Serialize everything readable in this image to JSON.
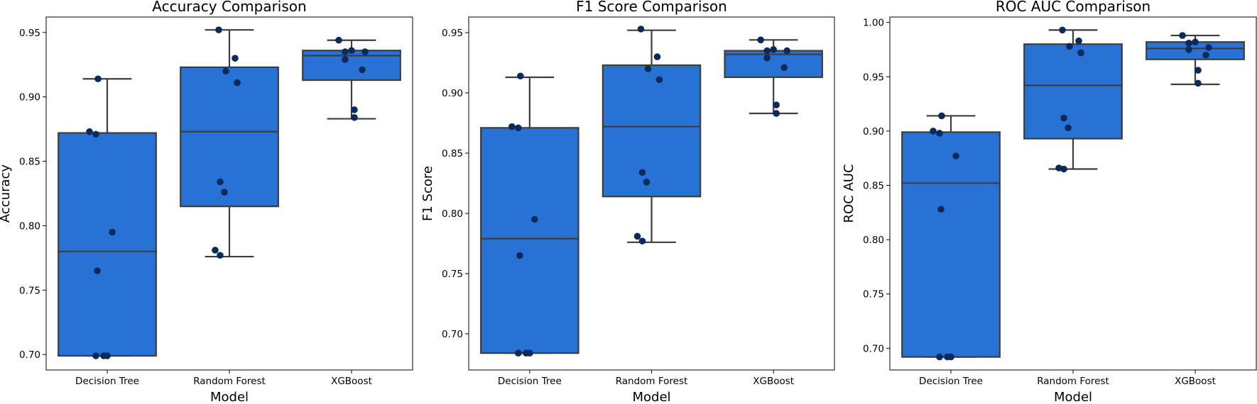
{
  "colors": {
    "box_fill": "#2872d6",
    "box_line": "#3d3d3d",
    "point": "#0a2a5c",
    "axis": "#000000",
    "background": "#ffffff"
  },
  "chart_data": [
    {
      "type": "box",
      "title": "Accuracy Comparison",
      "xlabel": "Model",
      "ylabel": "Accuracy",
      "ylim": [
        0.688,
        0.962
      ],
      "yticks": [
        "0.70",
        "0.75",
        "0.80",
        "0.85",
        "0.90",
        "0.95"
      ],
      "categories": [
        "Decision Tree",
        "Random Forest",
        "XGBoost"
      ],
      "boxes": [
        {
          "whislo": 0.699,
          "q1": 0.699,
          "med": 0.78,
          "q3": 0.872,
          "whishi": 0.914
        },
        {
          "whislo": 0.776,
          "q1": 0.815,
          "med": 0.873,
          "q3": 0.923,
          "whishi": 0.952
        },
        {
          "whislo": 0.883,
          "q1": 0.913,
          "med": 0.932,
          "q3": 0.936,
          "whishi": 0.944
        }
      ],
      "points": [
        [
          0.914,
          0.873,
          0.871,
          0.795,
          0.765,
          0.699,
          0.699,
          0.699
        ],
        [
          0.952,
          0.93,
          0.92,
          0.911,
          0.834,
          0.826,
          0.781,
          0.777
        ],
        [
          0.944,
          0.936,
          0.935,
          0.935,
          0.929,
          0.921,
          0.89,
          0.884
        ]
      ]
    },
    {
      "type": "box",
      "title": "F1 Score Comparison",
      "xlabel": "Model",
      "ylabel": "F1 Score",
      "ylim": [
        0.67,
        0.963
      ],
      "yticks": [
        "0.70",
        "0.75",
        "0.80",
        "0.85",
        "0.90",
        "0.95"
      ],
      "categories": [
        "Decision Tree",
        "Random Forest",
        "XGBoost"
      ],
      "boxes": [
        {
          "whislo": 0.684,
          "q1": 0.684,
          "med": 0.779,
          "q3": 0.871,
          "whishi": 0.913
        },
        {
          "whislo": 0.776,
          "q1": 0.814,
          "med": 0.872,
          "q3": 0.923,
          "whishi": 0.952
        },
        {
          "whislo": 0.883,
          "q1": 0.913,
          "med": 0.932,
          "q3": 0.935,
          "whishi": 0.944
        }
      ],
      "points": [
        [
          0.914,
          0.872,
          0.871,
          0.795,
          0.765,
          0.684,
          0.684,
          0.684
        ],
        [
          0.953,
          0.93,
          0.92,
          0.911,
          0.834,
          0.826,
          0.781,
          0.777
        ],
        [
          0.944,
          0.936,
          0.935,
          0.935,
          0.929,
          0.921,
          0.89,
          0.883
        ]
      ]
    },
    {
      "type": "box",
      "title": "ROC AUC Comparison",
      "xlabel": "Model",
      "ylabel": "ROC AUC",
      "ylim": [
        0.68,
        1.005
      ],
      "yticks": [
        "0.70",
        "0.75",
        "0.80",
        "0.85",
        "0.90",
        "0.95",
        "1.00"
      ],
      "categories": [
        "Decision Tree",
        "Random Forest",
        "XGBoost"
      ],
      "boxes": [
        {
          "whislo": 0.692,
          "q1": 0.692,
          "med": 0.852,
          "q3": 0.899,
          "whishi": 0.914
        },
        {
          "whislo": 0.865,
          "q1": 0.893,
          "med": 0.942,
          "q3": 0.98,
          "whishi": 0.993
        },
        {
          "whislo": 0.943,
          "q1": 0.966,
          "med": 0.976,
          "q3": 0.982,
          "whishi": 0.988
        }
      ],
      "points": [
        [
          0.914,
          0.9,
          0.898,
          0.877,
          0.828,
          0.692,
          0.692,
          0.692
        ],
        [
          0.993,
          0.983,
          0.978,
          0.972,
          0.912,
          0.903,
          0.866,
          0.865
        ],
        [
          0.988,
          0.982,
          0.981,
          0.977,
          0.975,
          0.97,
          0.956,
          0.944
        ]
      ]
    }
  ]
}
